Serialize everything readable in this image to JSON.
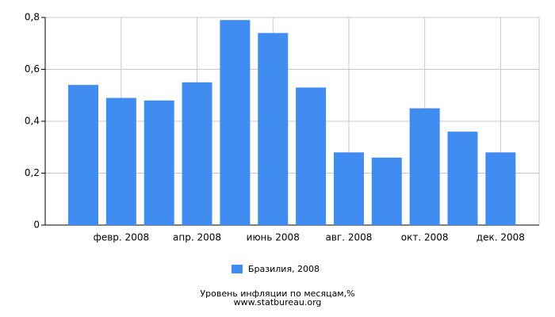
{
  "chart_data": {
    "type": "bar",
    "categories": [
      null,
      "февр. 2008",
      null,
      "апр. 2008",
      null,
      "июнь 2008",
      null,
      "авг. 2008",
      null,
      "окт. 2008",
      null,
      "дек. 2008"
    ],
    "series": [
      {
        "name": "Бразилия, 2008",
        "color": "#418cf0",
        "values": [
          0.54,
          0.49,
          0.48,
          0.55,
          0.79,
          0.74,
          0.53,
          0.28,
          0.26,
          0.45,
          0.36,
          0.28
        ]
      }
    ],
    "ylim": [
      0,
      0.8
    ],
    "yticks": [
      0,
      {
        "value": 0.2,
        "label": "0,2"
      },
      {
        "value": 0.4,
        "label": "0,4"
      },
      {
        "value": 0.6,
        "label": "0,6"
      },
      {
        "value": 0.8,
        "label": "0,8"
      }
    ],
    "grid": true,
    "title": "Уровень инфляции по месяцам,%",
    "subtitle": "www.statbureau.org"
  }
}
